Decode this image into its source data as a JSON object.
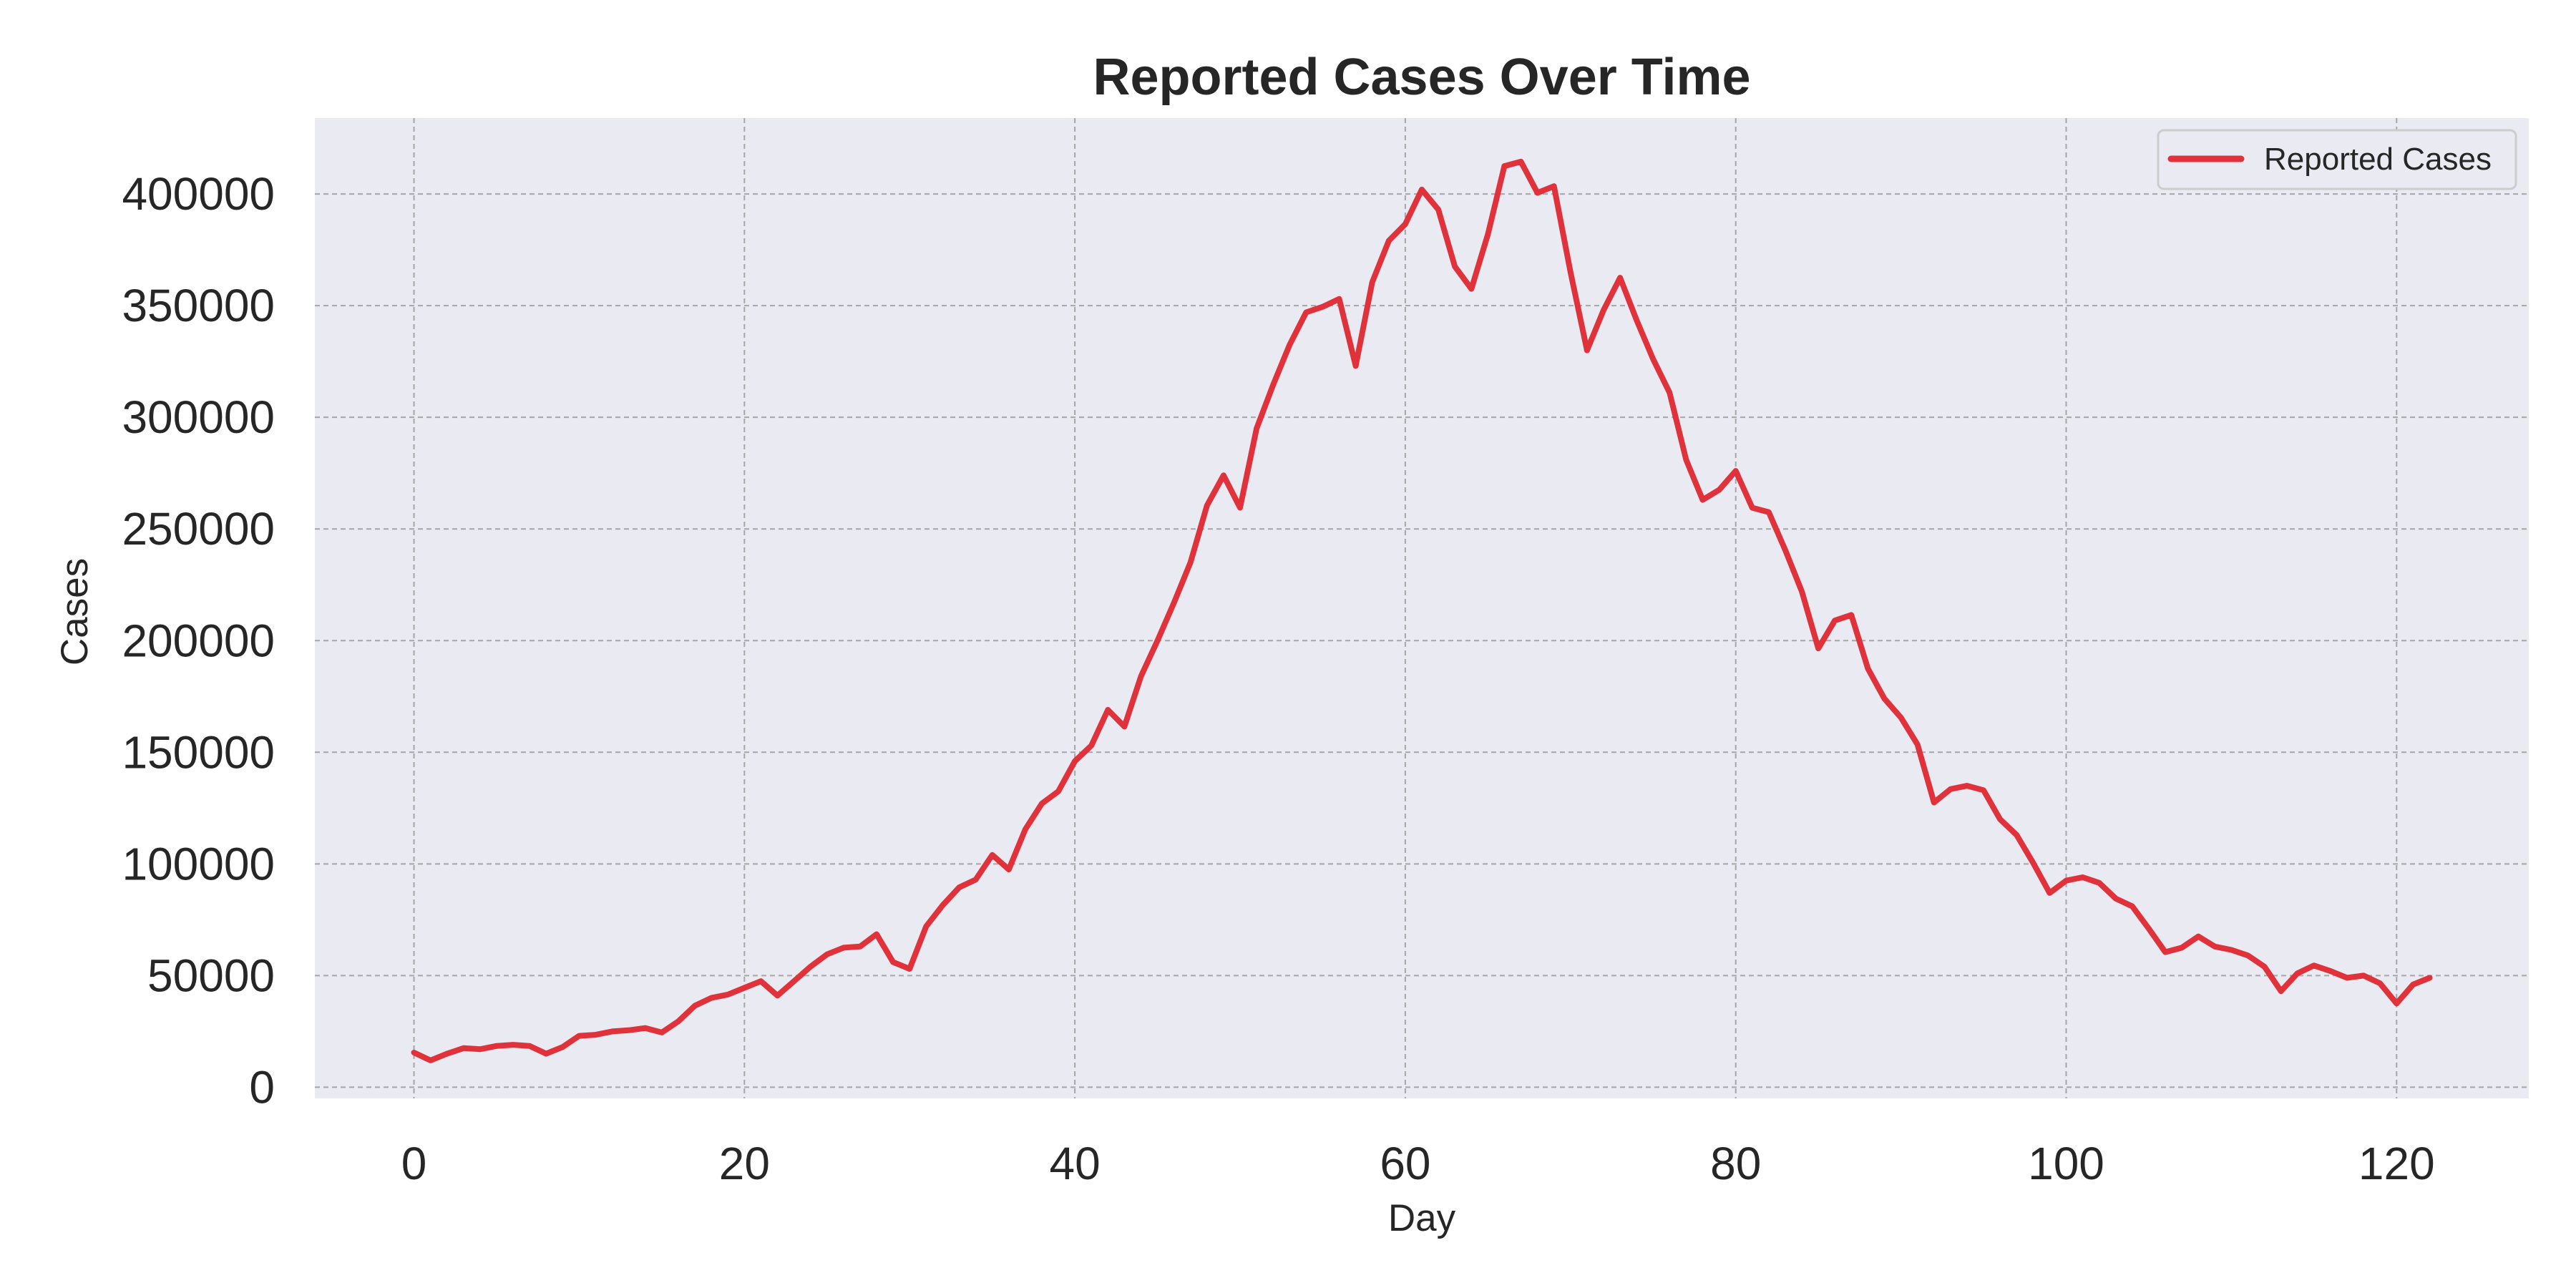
{
  "chart_data": {
    "type": "line",
    "title": "Reported Cases Over Time",
    "xlabel": "Day",
    "ylabel": "Cases",
    "xlim": [
      -6,
      128
    ],
    "ylim": [
      -5000,
      434000
    ],
    "xticks": [
      0,
      20,
      40,
      60,
      80,
      100,
      120
    ],
    "yticks": [
      0,
      50000,
      100000,
      150000,
      200000,
      250000,
      300000,
      350000,
      400000
    ],
    "grid": true,
    "legend_position": "top-right",
    "series": [
      {
        "name": "Reported Cases",
        "color": "#e0323a",
        "x": [
          0,
          1,
          2,
          3,
          4,
          5,
          6,
          7,
          8,
          9,
          10,
          11,
          12,
          13,
          14,
          15,
          16,
          17,
          18,
          19,
          20,
          21,
          22,
          23,
          24,
          25,
          26,
          27,
          28,
          29,
          30,
          31,
          32,
          33,
          34,
          35,
          36,
          37,
          38,
          39,
          40,
          41,
          42,
          43,
          44,
          45,
          46,
          47,
          48,
          49,
          50,
          51,
          52,
          53,
          54,
          55,
          56,
          57,
          58,
          59,
          60,
          61,
          62,
          63,
          64,
          65,
          66,
          67,
          68,
          69,
          70,
          71,
          72,
          73,
          74,
          75,
          76,
          77,
          78,
          79,
          80,
          81,
          82,
          83,
          84,
          85,
          86,
          87,
          88,
          89,
          90,
          91,
          92,
          93,
          94,
          95,
          96,
          97,
          98,
          99,
          100,
          101,
          102,
          103,
          104,
          105,
          106,
          107,
          108,
          109,
          110,
          111,
          112,
          113,
          114,
          115,
          116,
          117,
          118,
          119,
          120,
          121,
          122
        ],
        "values": [
          15500,
          12000,
          15000,
          17500,
          17000,
          18500,
          19000,
          18500,
          15000,
          18000,
          23000,
          23500,
          25000,
          25500,
          26500,
          24500,
          29500,
          36500,
          40000,
          41500,
          44500,
          47500,
          41000,
          47500,
          54000,
          59500,
          62500,
          63000,
          68500,
          56000,
          53000,
          72000,
          81500,
          89500,
          93000,
          104000,
          97500,
          115500,
          127000,
          132500,
          146000,
          153000,
          169000,
          161500,
          184000,
          200000,
          217000,
          235000,
          260500,
          274000,
          259500,
          295000,
          314500,
          332500,
          347000,
          349500,
          353000,
          323000,
          360500,
          379000,
          386500,
          402000,
          393000,
          367500,
          357500,
          382000,
          412500,
          414500,
          400500,
          403500,
          365000,
          330000,
          348000,
          362500,
          343500,
          326000,
          311000,
          281000,
          263000,
          267500,
          276000,
          259500,
          257500,
          240500,
          222000,
          196500,
          209000,
          211500,
          187500,
          174000,
          165500,
          153500,
          127500,
          133500,
          135000,
          133000,
          120000,
          113000,
          100500,
          87000,
          92500,
          94000,
          91500,
          84500,
          81000,
          71000,
          60500,
          62500,
          67500,
          63000,
          61500,
          59000,
          54000,
          43000,
          51000,
          54500,
          52000,
          49000,
          50000,
          46500,
          37500,
          46000,
          49000
        ]
      }
    ]
  }
}
